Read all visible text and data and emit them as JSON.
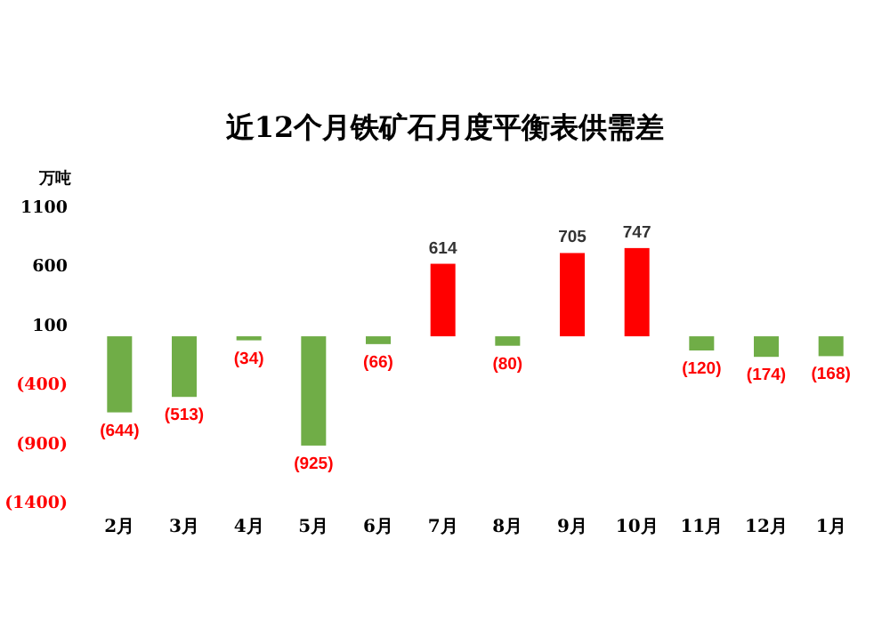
{
  "chart_data": {
    "type": "bar",
    "title": "近12个月铁矿石月度平衡表供需差",
    "ylabel": "万吨",
    "categories": [
      "2月",
      "3月",
      "4月",
      "5月",
      "6月",
      "7月",
      "8月",
      "9月",
      "10月",
      "11月",
      "12月",
      "1月"
    ],
    "values": [
      -644,
      -513,
      -34,
      -925,
      -66,
      614,
      -80,
      705,
      747,
      -120,
      -174,
      -168
    ],
    "colors": [
      "#70ad47",
      "#70ad47",
      "#70ad47",
      "#70ad47",
      "#70ad47",
      "#ff0000",
      "#70ad47",
      "#ff0000",
      "#ff0000",
      "#70ad47",
      "#70ad47",
      "#70ad47"
    ],
    "value_labels": [
      "(644)",
      "(513)",
      "(34)",
      "(925)",
      "(66)",
      "614",
      "(80)",
      "705",
      "747",
      "(120)",
      "(174)",
      "(168)"
    ],
    "ylim": [
      -1400,
      1100
    ],
    "yticks": [
      1100,
      600,
      100,
      {
        "value": -400,
        "label": "(400)"
      },
      {
        "value": -900,
        "label": "(900)"
      },
      {
        "value": -1400,
        "label": "(1400)"
      }
    ],
    "grid": false
  }
}
